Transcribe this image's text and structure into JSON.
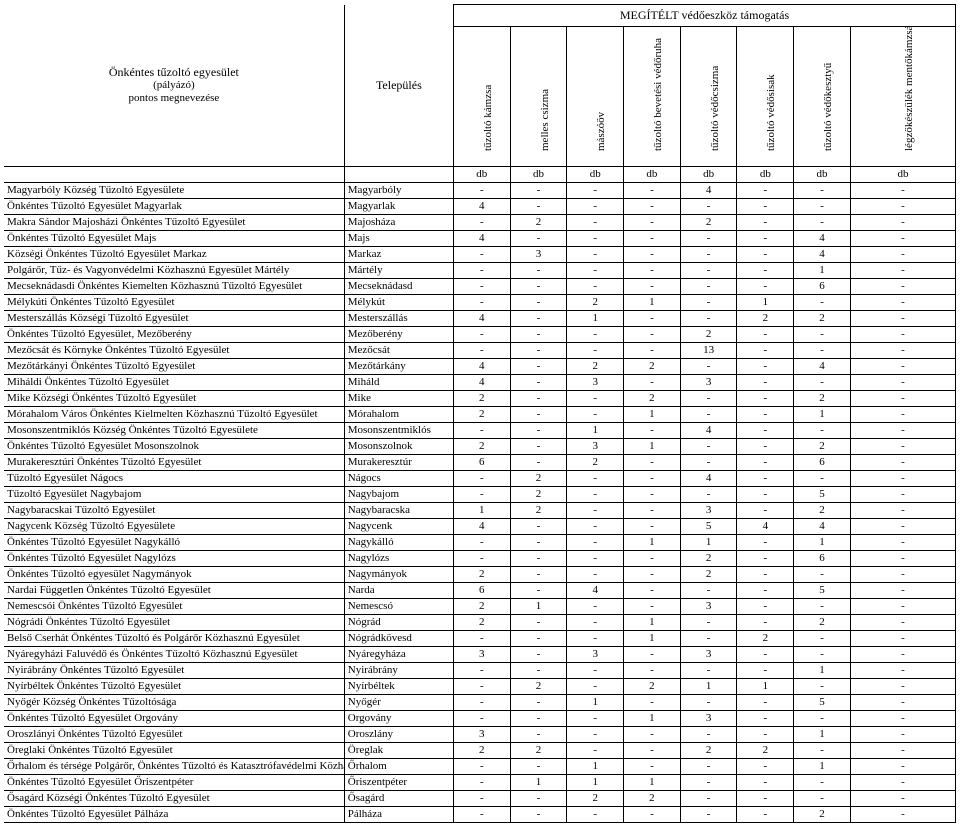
{
  "title": "MEGÍTÉLT védőeszköz támogatás",
  "left_header": {
    "line1": "Önkéntes tűzoltó egyesület",
    "line2": "(pályázó)",
    "line3": "pontos megnevezése"
  },
  "town_header": "Település",
  "unit_label": "db",
  "columns": [
    "tűzoltó kámzsa",
    "melles csizma",
    "mászóöv",
    "tűzoltó bevetési védőruha",
    "tűzoltó védőcsizma",
    "tűzoltó védősisak",
    "tűzoltó védőkesztyű",
    "légzőkészülék mentőkámzsával"
  ],
  "rows": [
    {
      "name": "Magyarbóly Község  Tűzoltó Egyesülete",
      "town": "Magyarbóly",
      "v": [
        "-",
        "-",
        "-",
        "-",
        "4",
        "-",
        "-",
        "-"
      ]
    },
    {
      "name": "Önkéntes Tűzoltó Egyesület Magyarlak",
      "town": "Magyarlak",
      "v": [
        "4",
        "-",
        "-",
        "-",
        "-",
        "-",
        "-",
        "-"
      ]
    },
    {
      "name": "Makra Sándor Majosházi Önkéntes Tűzoltó Egyesület",
      "town": "Majosháza",
      "v": [
        "-",
        "2",
        "-",
        "-",
        "2",
        "-",
        "-",
        "-"
      ]
    },
    {
      "name": "Önkéntes Tűzoltó Egyesület Majs",
      "town": "Majs",
      "v": [
        "4",
        "-",
        "-",
        "-",
        "-",
        "-",
        "4",
        "-"
      ]
    },
    {
      "name": "Községi Önkéntes Tűzoltó Egyesület Markaz",
      "town": "Markaz",
      "v": [
        "-",
        "3",
        "-",
        "-",
        "-",
        "-",
        "4",
        "-"
      ]
    },
    {
      "name": "Polgárőr, Tűz- és Vagyonvédelmi Közhasznú Egyesület Mártély",
      "town": "Mártély",
      "v": [
        "-",
        "-",
        "-",
        "-",
        "-",
        "-",
        "1",
        "-"
      ]
    },
    {
      "name": "Mecseknádasdi Önkéntes Kiemelten Közhasznú Tűzoltó Egyesület",
      "town": "Mecseknádasd",
      "v": [
        "-",
        "-",
        "-",
        "-",
        "-",
        "-",
        "6",
        "-"
      ]
    },
    {
      "name": "Mélykúti Önkéntes Tűzoltó Egyesület",
      "town": "Mélykút",
      "v": [
        "-",
        "-",
        "2",
        "1",
        "-",
        "1",
        "-",
        "-"
      ]
    },
    {
      "name": "Mesterszállás Községi Tűzoltó Egyesület",
      "town": "Mesterszállás",
      "v": [
        "4",
        "-",
        "1",
        "-",
        "-",
        "2",
        "2",
        "-"
      ]
    },
    {
      "name": "Önkéntes Tűzoltó Egyesület, Mezőberény",
      "town": "Mezőberény",
      "v": [
        "-",
        "-",
        "-",
        "-",
        "2",
        "-",
        "-",
        "-"
      ]
    },
    {
      "name": "Mezőcsát és Környke Önkéntes Tűzoltó Egyesület",
      "town": "Mezőcsát",
      "v": [
        "-",
        "-",
        "-",
        "-",
        "13",
        "-",
        "-",
        "-"
      ]
    },
    {
      "name": "Mezőtárkányi Önkéntes Tűzoltó Egyesület",
      "town": "Mezőtárkány",
      "v": [
        "4",
        "-",
        "2",
        "2",
        "-",
        "-",
        "4",
        "-"
      ]
    },
    {
      "name": "Miháldi Önkéntes Tűzoltó Egyesület",
      "town": "Miháld",
      "v": [
        "4",
        "-",
        "3",
        "-",
        "3",
        "-",
        "-",
        "-"
      ]
    },
    {
      "name": "Mike Községi Önkéntes Tűzoltó Egyesület",
      "town": "Mike",
      "v": [
        "2",
        "-",
        "-",
        "2",
        "-",
        "-",
        "2",
        "-"
      ]
    },
    {
      "name": "Mórahalom Város Önkéntes Kielmelten Közhasznú Tűzoltó Egyesület",
      "town": "Mórahalom",
      "v": [
        "2",
        "-",
        "-",
        "1",
        "-",
        "-",
        "1",
        "-"
      ]
    },
    {
      "name": "Mosonszentmiklós Község Önkéntes Tűzoltó Egyesülete",
      "town": "Mosonszentmiklós",
      "v": [
        "-",
        "-",
        "1",
        "-",
        "4",
        "-",
        "-",
        "-"
      ]
    },
    {
      "name": "Önkéntes Tűzoltó Egyesület Mosonszolnok",
      "town": "Mosonszolnok",
      "v": [
        "2",
        "-",
        "3",
        "1",
        "-",
        "-",
        "2",
        "-"
      ]
    },
    {
      "name": "Murakeresztúri Önkéntes Tűzoltó Egyesület",
      "town": "Murakeresztúr",
      "v": [
        "6",
        "-",
        "2",
        "-",
        "-",
        "-",
        "6",
        "-"
      ]
    },
    {
      "name": "Tűzoltó Egyesület Nágocs",
      "town": "Nágocs",
      "v": [
        "-",
        "2",
        "-",
        "-",
        "4",
        "-",
        "-",
        "-"
      ]
    },
    {
      "name": "Tűzoltó Egyesület Nagybajom",
      "town": "Nagybajom",
      "v": [
        "-",
        "2",
        "-",
        "-",
        "-",
        "-",
        "5",
        "-"
      ]
    },
    {
      "name": "Nagybaracskai Tűzoltó Egyesület",
      "town": "Nagybaracska",
      "v": [
        "1",
        "2",
        "-",
        "-",
        "3",
        "-",
        "2",
        "-"
      ]
    },
    {
      "name": "Nagycenk Község Tűzoltó Egyesülete",
      "town": "Nagycenk",
      "v": [
        "4",
        "-",
        "-",
        "-",
        "5",
        "4",
        "4",
        "-"
      ]
    },
    {
      "name": "Önkéntes Tűzoltó Egyesület Nagykálló",
      "town": "Nagykálló",
      "v": [
        "-",
        "-",
        "-",
        "1",
        "1",
        "-",
        "1",
        "-"
      ]
    },
    {
      "name": "Önkéntes Tűzoltó Egyesület Nagylózs",
      "town": "Nagylózs",
      "v": [
        "-",
        "-",
        "-",
        "-",
        "2",
        "-",
        "6",
        "-"
      ]
    },
    {
      "name": "Önkéntes Tűzoltó egyesület Nagymányok",
      "town": "Nagymányok",
      "v": [
        "2",
        "-",
        "-",
        "-",
        "2",
        "-",
        "-",
        "-"
      ]
    },
    {
      "name": "Nardai Független Önkéntes Tűzoltó Egyesület",
      "town": "Narda",
      "v": [
        "6",
        "-",
        "4",
        "-",
        "-",
        "-",
        "5",
        "-"
      ]
    },
    {
      "name": "Nemescsói Önkéntes Tűzoltó Egyesület",
      "town": "Nemescsó",
      "v": [
        "2",
        "1",
        "-",
        "-",
        "3",
        "-",
        "-",
        "-"
      ]
    },
    {
      "name": "Nógrádi Önkéntes Tűzoltó Egyesület",
      "town": "Nógrád",
      "v": [
        "2",
        "-",
        "-",
        "1",
        "-",
        "-",
        "2",
        "-"
      ]
    },
    {
      "name": "Belső Cserhát Önkéntes Tűzoltó és Polgárőr Közhasznú Egyesület",
      "town": "Nógrádkövesd",
      "v": [
        "-",
        "-",
        "-",
        "1",
        "-",
        "2",
        "-",
        "-"
      ]
    },
    {
      "name": "Nyáregyházi Faluvédő és Önkéntes Tűzoltó Közhasznú Egyesület",
      "town": "Nyáregyháza",
      "v": [
        "3",
        "-",
        "3",
        "-",
        "3",
        "-",
        "-",
        "-"
      ]
    },
    {
      "name": "Nyirábrány Önkéntes Tűzoltó Egyesület",
      "town": "Nyirábrány",
      "v": [
        "-",
        "-",
        "-",
        "-",
        "-",
        "-",
        "1",
        "-"
      ]
    },
    {
      "name": "Nyírbéltek Önkéntes Tűzoltó Egyesület",
      "town": "Nyírbéltek",
      "v": [
        "-",
        "2",
        "-",
        "2",
        "1",
        "1",
        "-",
        "-"
      ]
    },
    {
      "name": "Nyőgér Község Önkéntes Tűzoltósága",
      "town": "Nyőgér",
      "v": [
        "-",
        "-",
        "1",
        "-",
        "-",
        "-",
        "5",
        "-"
      ]
    },
    {
      "name": "Önkéntes Tűzoltó Egyesület Orgovány",
      "town": "Orgovány",
      "v": [
        "-",
        "-",
        "-",
        "1",
        "3",
        "-",
        "-",
        "-"
      ]
    },
    {
      "name": "Oroszlányi Önkéntes Tűzoltó Egyesület",
      "town": "Oroszlány",
      "v": [
        "3",
        "-",
        "-",
        "-",
        "-",
        "-",
        "1",
        "-"
      ]
    },
    {
      "name": "Öreglaki Önkéntes Tűzoltó Egyesület",
      "town": "Öreglak",
      "v": [
        "2",
        "2",
        "-",
        "-",
        "2",
        "2",
        "-",
        "-"
      ]
    },
    {
      "name": "Őrhalom és térsége Polgárőr, Önkéntes Tűzoltó és Katasztrófavédelmi Közhasznú Egyesület",
      "town": "Őrhalom",
      "v": [
        "-",
        "-",
        "1",
        "-",
        "-",
        "-",
        "1",
        "-"
      ]
    },
    {
      "name": "Önkéntes Tűzoltó Egyesület Őriszentpéter",
      "town": "Őriszentpéter",
      "v": [
        "-",
        "1",
        "1",
        "1",
        "-",
        "-",
        "-",
        "-"
      ]
    },
    {
      "name": "Ősagárd Községi Önkéntes Tűzoltó Egyesület",
      "town": "Ősagárd",
      "v": [
        "-",
        "-",
        "2",
        "2",
        "-",
        "-",
        "-",
        "-"
      ]
    },
    {
      "name": "Önkéntes Tűzoltó Egyesület Pálháza",
      "town": "Pálháza",
      "v": [
        "-",
        "-",
        "-",
        "-",
        "-",
        "-",
        "2",
        "-"
      ]
    }
  ]
}
